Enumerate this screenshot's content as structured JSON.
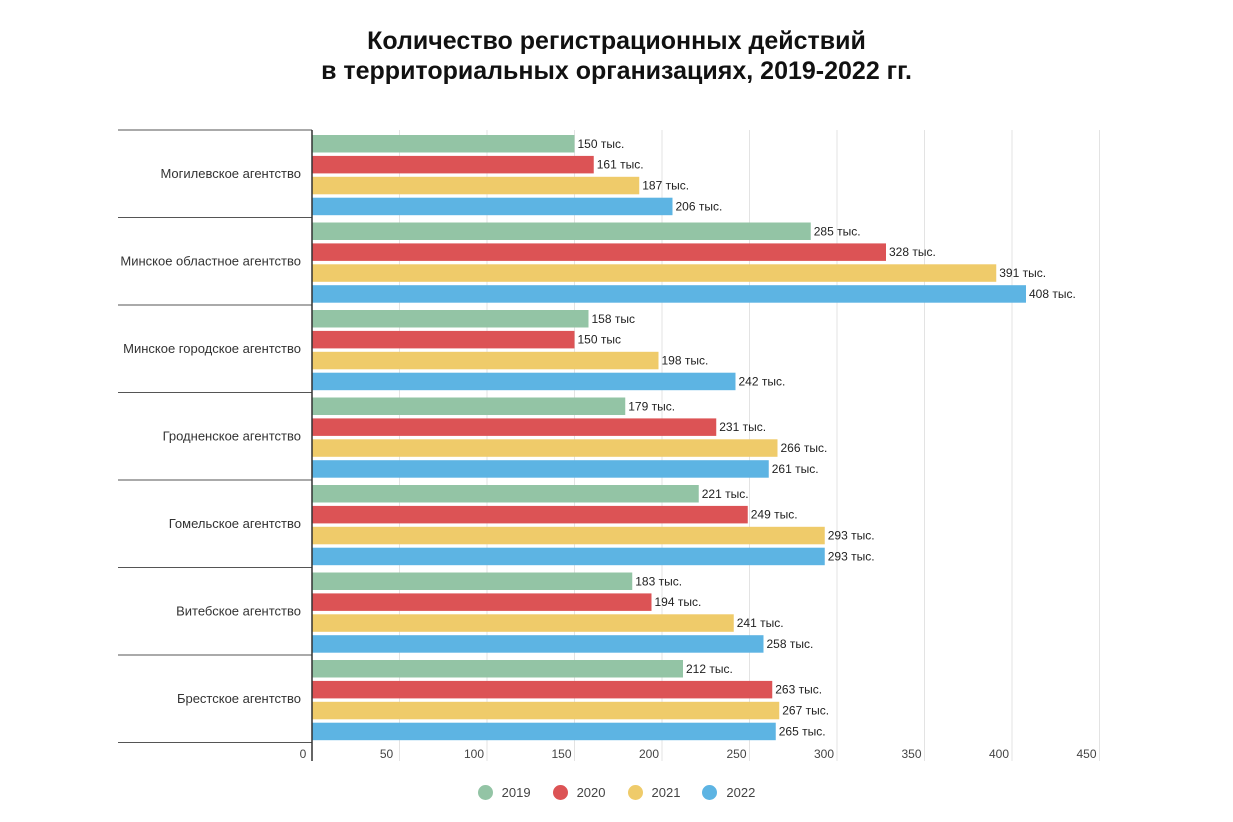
{
  "chart_data": {
    "type": "bar",
    "orientation": "horizontal",
    "title": "Количество регистрационных действий в территориальных организациях, 2019-2022 гг.",
    "title_lines": [
      "Количество регистрационных действий",
      "в территориальных организациях, 2019-2022 гг."
    ],
    "categories": [
      "Могилевское агентство",
      "Минское областное агентство",
      "Минское городское агентство",
      "Гродненское агентство",
      "Гомельское агентство",
      "Витебское агентство",
      "Брестское агентство"
    ],
    "series": [
      {
        "name": "2019",
        "color": "#93c4a5",
        "values": [
          150,
          285,
          158,
          179,
          221,
          183,
          212
        ],
        "labels": [
          "150 тыс.",
          "285 тыс.",
          "158 тыс",
          "179 тыс.",
          "221 тыс.",
          "183 тыс.",
          "212 тыс."
        ]
      },
      {
        "name": "2020",
        "color": "#dc5355",
        "values": [
          161,
          328,
          150,
          231,
          249,
          194,
          263
        ],
        "labels": [
          "161 тыс.",
          "328 тыс.",
          "150 тыс",
          "231 тыс.",
          "249 тыс.",
          "194 тыс.",
          "263 тыс."
        ]
      },
      {
        "name": "2021",
        "color": "#efcb6a",
        "values": [
          187,
          391,
          198,
          266,
          293,
          241,
          267
        ],
        "labels": [
          "187 тыс.",
          "391 тыс.",
          "198 тыс.",
          "266 тыс.",
          "293 тыс.",
          "241 тыс.",
          "267 тыс."
        ]
      },
      {
        "name": "2022",
        "color": "#5db4e3",
        "values": [
          206,
          408,
          242,
          261,
          293,
          258,
          265
        ],
        "labels": [
          "206 тыс.",
          "408 тыс.",
          "242 тыс.",
          "261 тыс.",
          "293 тыс.",
          "258 тыс.",
          "265 тыс."
        ]
      }
    ],
    "xticks": [
      0,
      50,
      100,
      150,
      200,
      250,
      300,
      350,
      400,
      450
    ],
    "xlim": [
      0,
      450
    ],
    "xlabel": "",
    "ylabel": "",
    "grid": true,
    "legend_position": "bottom-center"
  }
}
